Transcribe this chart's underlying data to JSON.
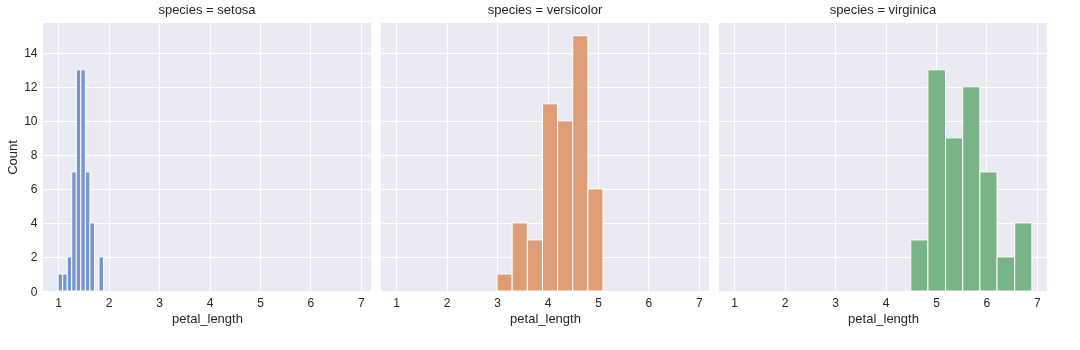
{
  "chart_data": [
    {
      "type": "histogram",
      "title": "species = setosa",
      "xlabel": "petal_length",
      "ylabel": "Count",
      "bins": [
        1.0,
        1.09,
        1.18,
        1.27,
        1.36,
        1.45,
        1.54,
        1.63,
        1.72,
        1.81,
        1.9
      ],
      "values": [
        1,
        1,
        2,
        7,
        13,
        13,
        7,
        4,
        0,
        2
      ],
      "color": "#7896cb",
      "xlim": [
        0.7,
        7.2
      ],
      "xticks": [
        1,
        2,
        3,
        4,
        5,
        6,
        7
      ],
      "ylim": [
        0,
        15.75
      ],
      "yticks": [
        0,
        2,
        4,
        6,
        8,
        10,
        12,
        14
      ],
      "grid": true
    },
    {
      "type": "histogram",
      "title": "species = versicolor",
      "xlabel": "petal_length",
      "bins": [
        3.0,
        3.3,
        3.6,
        3.9,
        4.2,
        4.5,
        4.8,
        5.1
      ],
      "values": [
        1,
        4,
        3,
        11,
        10,
        15,
        6
      ],
      "color": "#df9d77",
      "xlim": [
        0.7,
        7.2
      ],
      "xticks": [
        1,
        2,
        3,
        4,
        5,
        6,
        7
      ],
      "ylim": [
        0,
        15.75
      ],
      "yticks": [
        0,
        2,
        4,
        6,
        8,
        10,
        12,
        14
      ],
      "grid": true,
      "tick_labels": "x"
    },
    {
      "type": "histogram",
      "title": "species = virginica",
      "xlabel": "petal_length",
      "bins": [
        4.5,
        4.84,
        5.19,
        5.53,
        5.87,
        6.21,
        6.56,
        6.9
      ],
      "values": [
        3,
        13,
        9,
        12,
        7,
        2,
        4
      ],
      "color": "#78b486",
      "xlim": [
        0.7,
        7.2
      ],
      "xticks": [
        1,
        2,
        3,
        4,
        5,
        6,
        7
      ],
      "ylim": [
        0,
        15.75
      ],
      "yticks": [
        0,
        2,
        4,
        6,
        8,
        10,
        12,
        14
      ],
      "grid": true,
      "tick_labels": "x"
    }
  ]
}
